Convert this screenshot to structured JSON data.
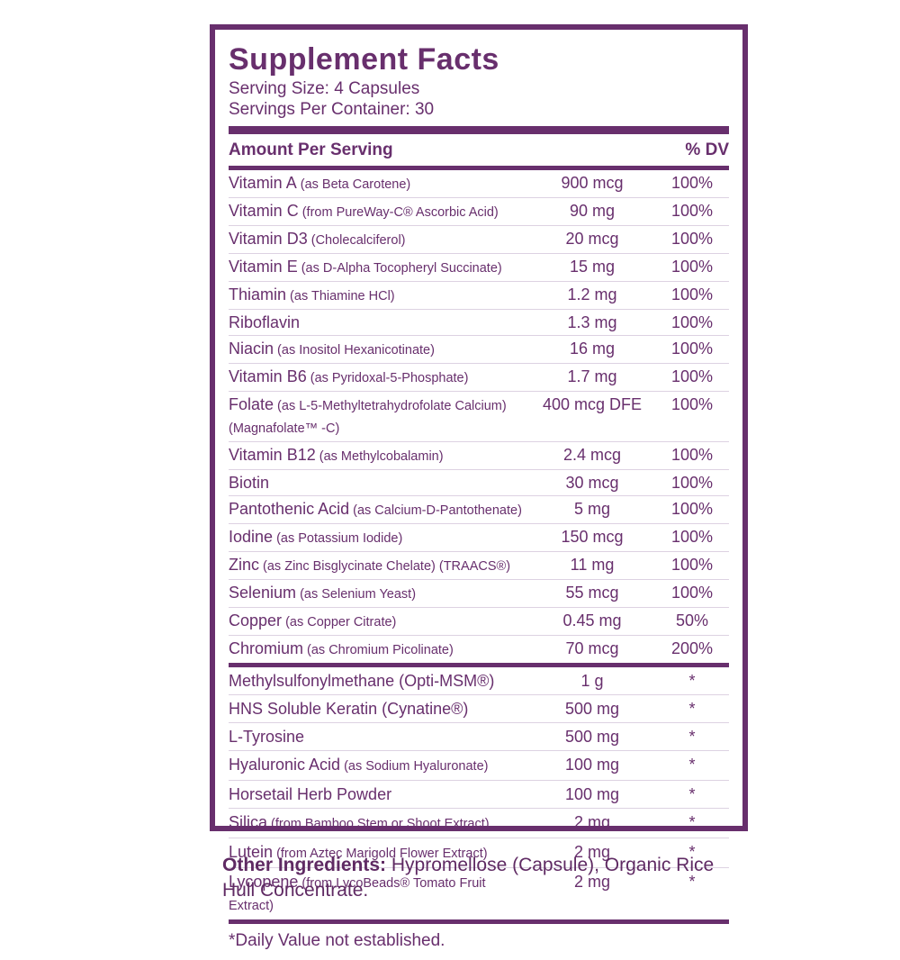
{
  "label": {
    "title": "Supplement Facts",
    "serving_size": "Serving Size: 4 Capsules",
    "servings_per_container": "Servings Per Container: 30",
    "header": {
      "amount_per_serving": "Amount Per Serving",
      "percent_dv": "% DV"
    },
    "sections": [
      {
        "rows": [
          {
            "name": "Vitamin A",
            "detail": "(as Beta Carotene)",
            "amount": "900 mcg",
            "dv": "100%"
          },
          {
            "name": "Vitamin C",
            "detail": "(from PureWay-C® Ascorbic Acid)",
            "amount": "90 mg",
            "dv": "100%"
          },
          {
            "name": "Vitamin D3",
            "detail": "(Cholecalciferol)",
            "amount": "20 mcg",
            "dv": "100%"
          },
          {
            "name": "Vitamin E",
            "detail": "(as D-Alpha Tocopheryl Succinate)",
            "amount": "15 mg",
            "dv": "100%"
          },
          {
            "name": "Thiamin",
            "detail": "(as Thiamine HCl)",
            "amount": "1.2 mg",
            "dv": "100%"
          },
          {
            "name": "Riboflavin",
            "detail": "",
            "amount": "1.3 mg",
            "dv": "100%"
          },
          {
            "name": "Niacin",
            "detail": "(as Inositol Hexanicotinate)",
            "amount": "16 mg",
            "dv": "100%"
          },
          {
            "name": "Vitamin B6",
            "detail": "(as Pyridoxal-5-Phosphate)",
            "amount": "1.7 mg",
            "dv": "100%"
          },
          {
            "name": "Folate",
            "detail": "(as L-5-Methyltetrahydrofolate Calcium)(Magnafolate™ -C)",
            "amount": "400 mcg DFE",
            "dv": "100%"
          },
          {
            "name": "Vitamin B12",
            "detail": "(as Methylcobalamin)",
            "amount": "2.4 mcg",
            "dv": "100%"
          },
          {
            "name": "Biotin",
            "detail": "",
            "amount": "30 mcg",
            "dv": "100%"
          },
          {
            "name": "Pantothenic Acid",
            "detail": "(as Calcium-D-Pantothenate)",
            "amount": "5 mg",
            "dv": "100%"
          },
          {
            "name": "Iodine",
            "detail": "(as Potassium Iodide)",
            "amount": "150 mcg",
            "dv": "100%"
          },
          {
            "name": "Zinc",
            "detail": "(as Zinc Bisglycinate Chelate) (TRAACS®)",
            "amount": "11 mg",
            "dv": "100%"
          },
          {
            "name": "Selenium",
            "detail": "(as Selenium Yeast)",
            "amount": "55 mcg",
            "dv": "100%"
          },
          {
            "name": "Copper",
            "detail": "(as Copper Citrate)",
            "amount": "0.45 mg",
            "dv": "50%"
          },
          {
            "name": "Chromium",
            "detail": "(as Chromium Picolinate)",
            "amount": "70 mcg",
            "dv": "200%"
          }
        ]
      },
      {
        "rows": [
          {
            "name": "Methylsulfonylmethane (Opti-MSM®)",
            "detail": "",
            "amount": "1 g",
            "dv": "*"
          },
          {
            "name": "HNS Soluble Keratin (Cynatine®)",
            "detail": "",
            "amount": "500 mg",
            "dv": "*"
          },
          {
            "name": "L-Tyrosine",
            "detail": "",
            "amount": "500 mg",
            "dv": "*"
          },
          {
            "name": "Hyaluronic Acid",
            "detail": "(as Sodium Hyaluronate)",
            "amount": "100 mg",
            "dv": "*"
          },
          {
            "name": "Horsetail Herb Powder",
            "detail": "",
            "amount": "100 mg",
            "dv": "*"
          },
          {
            "name": "Silica",
            "detail": "(from Bamboo Stem or Shoot Extract)",
            "amount": "2 mg",
            "dv": "*"
          },
          {
            "name": "Lutein",
            "detail": "(from Aztec Marigold Flower Extract)",
            "amount": "2 mg",
            "dv": "*"
          },
          {
            "name": "Lycopene",
            "detail": "(from LycoBeads® Tomato Fruit Extract)",
            "amount": "2 mg",
            "dv": "*"
          }
        ]
      }
    ],
    "footnote": "*Daily Value not established.",
    "other_ingredients_label": "Other Ingredients:",
    "other_ingredients_text": " Hypromellose (Capsule), Organic Rice Hull Concentrate.",
    "colors": {
      "purple": "#682f6d",
      "separator": "#ddd2e2"
    }
  }
}
